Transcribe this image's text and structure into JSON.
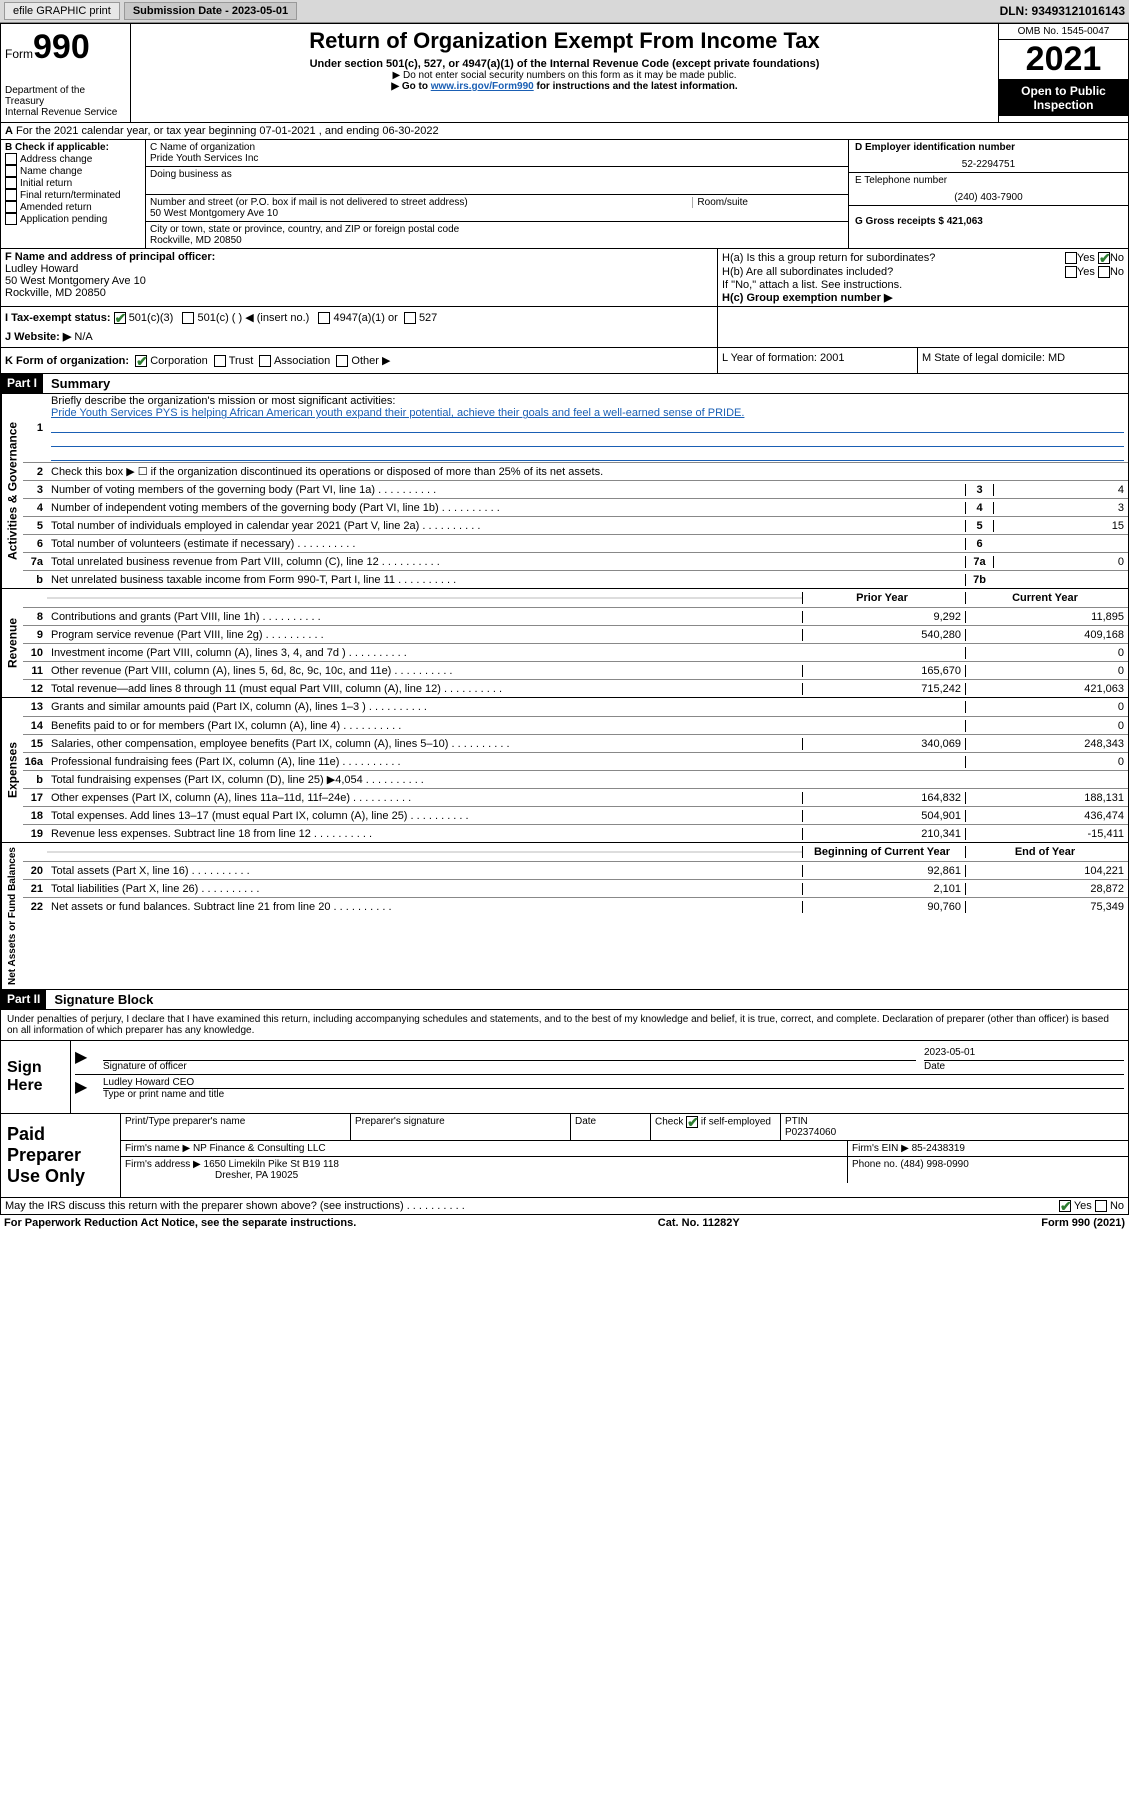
{
  "topbar": {
    "efile_label": "efile GRAPHIC print",
    "submission_label": "Submission Date - 2023-05-01",
    "dln_label": "DLN: 93493121016143"
  },
  "header": {
    "form_label": "Form",
    "form_number": "990",
    "dept": "Department of the Treasury",
    "service": "Internal Revenue Service",
    "title": "Return of Organization Exempt From Income Tax",
    "subtitle": "Under section 501(c), 527, or 4947(a)(1) of the Internal Revenue Code (except private foundations)",
    "arrow1": "▶ Do not enter social security numbers on this form as it may be made public.",
    "arrow2_pre": "▶ Go to ",
    "arrow2_link": "www.irs.gov/Form990",
    "arrow2_post": " for instructions and the latest information.",
    "omb": "OMB No. 1545-0047",
    "year": "2021",
    "open": "Open to Public Inspection"
  },
  "row_a": {
    "lead": "A",
    "text": "For the 2021 calendar year, or tax year beginning 07-01-2021   , and ending 06-30-2022"
  },
  "section_b": {
    "header": "B Check if applicable:",
    "items": [
      "Address change",
      "Name change",
      "Initial return",
      "Final return/terminated",
      "Amended return",
      "Application pending"
    ],
    "c_label": "C Name of organization",
    "c_value": "Pride Youth Services Inc",
    "dba_label": "Doing business as",
    "addr_label": "Number and street (or P.O. box if mail is not delivered to street address)",
    "room_label": "Room/suite",
    "addr_value": "50 West Montgomery Ave 10",
    "city_label": "City or town, state or province, country, and ZIP or foreign postal code",
    "city_value": "Rockville, MD  20850",
    "d_label": "D Employer identification number",
    "d_value": "52-2294751",
    "e_label": "E Telephone number",
    "e_value": "(240) 403-7900",
    "g_label": "G Gross receipts $ 421,063"
  },
  "section_f": {
    "f_label": "F Name and address of principal officer:",
    "f_name": "Ludley Howard",
    "f_addr1": "50 West Montgomery Ave 10",
    "f_addr2": "Rockville, MD  20850",
    "ha_label": "H(a)  Is this a group return for subordinates?",
    "hb_label": "H(b)  Are all subordinates included?",
    "hb_note": "If \"No,\" attach a list. See instructions.",
    "hc_label": "H(c)  Group exemption number ▶",
    "yes": "Yes",
    "no": "No"
  },
  "section_i": {
    "i_label": "I    Tax-exempt status:",
    "i_501c3": "501(c)(3)",
    "i_501c": "501(c) (  ) ◀ (insert no.)",
    "i_4947": "4947(a)(1) or",
    "i_527": "527",
    "j_label": "J   Website: ▶",
    "j_value": "N/A"
  },
  "section_k": {
    "k_label": "K Form of organization:",
    "k_corp": "Corporation",
    "k_trust": "Trust",
    "k_assoc": "Association",
    "k_other": "Other ▶",
    "l_label": "L Year of formation: 2001",
    "m_label": "M State of legal domicile: MD"
  },
  "part1": {
    "label": "Part I",
    "title": "Summary",
    "line1_label": "Briefly describe the organization's mission or most significant activities:",
    "line1_text": "Pride Youth Services PYS is helping African American youth expand their potential, achieve their goals and feel a well-earned sense of PRIDE.",
    "line2_label": "Check this box ▶ ☐  if the organization discontinued its operations or disposed of more than 25% of its net assets.",
    "line3": {
      "label": "Number of voting members of the governing body (Part VI, line 1a)",
      "cell": "3",
      "val": "4"
    },
    "line4": {
      "label": "Number of independent voting members of the governing body (Part VI, line 1b)",
      "cell": "4",
      "val": "3"
    },
    "line5": {
      "label": "Total number of individuals employed in calendar year 2021 (Part V, line 2a)",
      "cell": "5",
      "val": "15"
    },
    "line6": {
      "label": "Total number of volunteers (estimate if necessary)",
      "cell": "6",
      "val": ""
    },
    "line7a": {
      "label": "Total unrelated business revenue from Part VIII, column (C), line 12",
      "cell": "7a",
      "val": "0"
    },
    "line7b": {
      "label": "Net unrelated business taxable income from Form 990-T, Part I, line 11",
      "cell": "7b",
      "val": ""
    },
    "col_prior": "Prior Year",
    "col_curr": "Current Year",
    "rev": [
      {
        "n": "8",
        "label": "Contributions and grants (Part VIII, line 1h)",
        "p": "9,292",
        "c": "11,895"
      },
      {
        "n": "9",
        "label": "Program service revenue (Part VIII, line 2g)",
        "p": "540,280",
        "c": "409,168"
      },
      {
        "n": "10",
        "label": "Investment income (Part VIII, column (A), lines 3, 4, and 7d )",
        "p": "",
        "c": "0"
      },
      {
        "n": "11",
        "label": "Other revenue (Part VIII, column (A), lines 5, 6d, 8c, 9c, 10c, and 11e)",
        "p": "165,670",
        "c": "0"
      },
      {
        "n": "12",
        "label": "Total revenue—add lines 8 through 11 (must equal Part VIII, column (A), line 12)",
        "p": "715,242",
        "c": "421,063"
      }
    ],
    "exp": [
      {
        "n": "13",
        "label": "Grants and similar amounts paid (Part IX, column (A), lines 1–3 )",
        "p": "",
        "c": "0"
      },
      {
        "n": "14",
        "label": "Benefits paid to or for members (Part IX, column (A), line 4)",
        "p": "",
        "c": "0"
      },
      {
        "n": "15",
        "label": "Salaries, other compensation, employee benefits (Part IX, column (A), lines 5–10)",
        "p": "340,069",
        "c": "248,343"
      },
      {
        "n": "16a",
        "label": "Professional fundraising fees (Part IX, column (A), line 11e)",
        "p": "",
        "c": "0"
      },
      {
        "n": "b",
        "label": "Total fundraising expenses (Part IX, column (D), line 25) ▶4,054",
        "p": "gray",
        "c": "gray"
      },
      {
        "n": "17",
        "label": "Other expenses (Part IX, column (A), lines 11a–11d, 11f–24e)",
        "p": "164,832",
        "c": "188,131"
      },
      {
        "n": "18",
        "label": "Total expenses. Add lines 13–17 (must equal Part IX, column (A), line 25)",
        "p": "504,901",
        "c": "436,474"
      },
      {
        "n": "19",
        "label": "Revenue less expenses. Subtract line 18 from line 12",
        "p": "210,341",
        "c": "-15,411"
      }
    ],
    "col_begin": "Beginning of Current Year",
    "col_end": "End of Year",
    "na": [
      {
        "n": "20",
        "label": "Total assets (Part X, line 16)",
        "p": "92,861",
        "c": "104,221"
      },
      {
        "n": "21",
        "label": "Total liabilities (Part X, line 26)",
        "p": "2,101",
        "c": "28,872"
      },
      {
        "n": "22",
        "label": "Net assets or fund balances. Subtract line 21 from line 20",
        "p": "90,760",
        "c": "75,349"
      }
    ],
    "side_gov": "Activities & Governance",
    "side_rev": "Revenue",
    "side_exp": "Expenses",
    "side_na": "Net Assets or Fund Balances"
  },
  "part2": {
    "label": "Part II",
    "title": "Signature Block",
    "perjury": "Under penalties of perjury, I declare that I have examined this return, including accompanying schedules and statements, and to the best of my knowledge and belief, it is true, correct, and complete. Declaration of preparer (other than officer) is based on all information of which preparer has any knowledge.",
    "sign_here": "Sign Here",
    "sig_officer_label": "Signature of officer",
    "date_label": "Date",
    "date_value": "2023-05-01",
    "name_title_label": "Type or print name and title",
    "name_title_value": "Ludley Howard CEO",
    "paid_prep": "Paid Preparer Use Only",
    "col_print": "Print/Type preparer's name",
    "col_sig": "Preparer's signature",
    "col_date": "Date",
    "col_check": "Check",
    "col_check_suffix": "if self-employed",
    "col_ptin": "PTIN",
    "ptin_value": "P02374060",
    "firm_name_label": "Firm's name      ▶",
    "firm_name_value": "NP Finance & Consulting LLC",
    "firm_ein_label": "Firm's EIN ▶",
    "firm_ein_value": "85-2438319",
    "firm_addr_label": "Firm's address ▶",
    "firm_addr_value1": "1650 Limekiln Pike St B19 118",
    "firm_addr_value2": "Dresher, PA  19025",
    "phone_label": "Phone no. (484) 998-0990",
    "may_irs": "May the IRS discuss this return with the preparer shown above? (see instructions)",
    "paperwork": "For Paperwork Reduction Act Notice, see the separate instructions.",
    "cat": "Cat. No. 11282Y",
    "form_ref": "Form 990 (2021)"
  }
}
